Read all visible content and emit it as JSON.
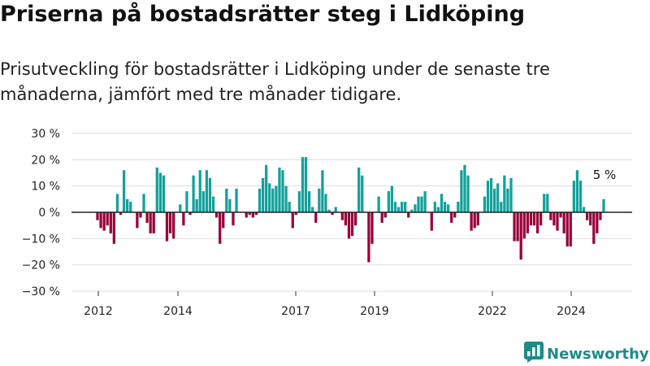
{
  "title": "Priserna på bostadsrätter steg i Lidköping",
  "subtitle": "Prisutveckling för bostadsrätter i Lidköping under de senaste tre månaderna, jämfört med tre månader tidigare.",
  "brand": {
    "name": "Newsworthy",
    "icon": "newsworthy-chart-icon",
    "color": "#1c8c86"
  },
  "colors": {
    "positive": "#13a19b",
    "negative": "#9a0039",
    "grid": "#dddddd",
    "zero": "#222222"
  },
  "chart_data": {
    "type": "bar",
    "ylim": [
      -30,
      30
    ],
    "y_ticks": [
      -30,
      -20,
      -10,
      0,
      10,
      20,
      30
    ],
    "y_tick_labels": [
      "−30 %",
      "−20 %",
      "−10 %",
      "0 %",
      "10 %",
      "20 %",
      "30 %"
    ],
    "x_ticks": [
      2012,
      2014,
      2017,
      2019,
      2022,
      2024
    ],
    "x_tick_labels": [
      "2012",
      "2014",
      "2017",
      "2019",
      "2022",
      "2024"
    ],
    "grid": true,
    "annotation": {
      "text": "5 %",
      "value": 5
    },
    "values": [
      -3,
      -6,
      -7,
      -5,
      -8,
      -12,
      7,
      -1,
      16,
      5,
      4,
      0,
      -6,
      -2,
      7,
      -4,
      -8,
      -8,
      17,
      15,
      14,
      -11,
      -8,
      -10,
      0,
      3,
      -5,
      8,
      -1,
      14,
      5,
      16,
      8,
      16,
      13,
      6,
      -2,
      -12,
      -6,
      9,
      5,
      -5,
      9,
      0,
      0,
      -2,
      -1,
      -2,
      -1,
      9,
      13,
      18,
      11,
      9,
      10,
      17,
      16,
      10,
      4,
      -6,
      -1,
      8,
      21,
      21,
      8,
      2,
      -4,
      9,
      16,
      7,
      1,
      -1,
      2,
      0,
      -3,
      -5,
      -10,
      -9,
      -5,
      17,
      14,
      0,
      -19,
      -12,
      0,
      6,
      -4,
      -2,
      8,
      10,
      4,
      2,
      4,
      4,
      -2,
      1,
      3,
      6,
      6,
      8,
      0,
      -7,
      4,
      2,
      7,
      4,
      3,
      -4,
      -2,
      4,
      16,
      18,
      14,
      -7,
      -6,
      -5,
      0,
      6,
      12,
      13,
      9,
      11,
      4,
      14,
      9,
      13,
      -11,
      -11,
      -18,
      -10,
      -8,
      -5,
      -5,
      -8,
      -5,
      7,
      7,
      -3,
      -5,
      -7,
      -2,
      -8,
      -13,
      -13,
      12,
      16,
      12,
      2,
      -3,
      -5,
      -12,
      -8,
      -3,
      5
    ]
  }
}
